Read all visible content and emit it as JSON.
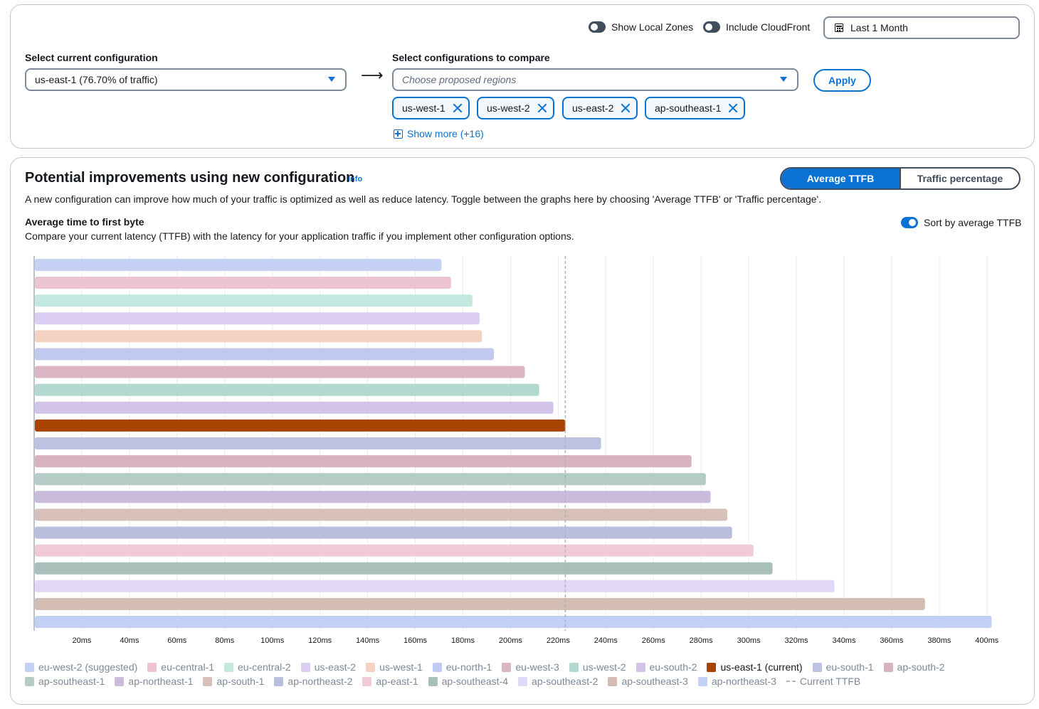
{
  "top": {
    "show_local_zones": "Show Local Zones",
    "include_cloudfront": "Include CloudFront",
    "date_range": "Last 1 Month",
    "current_label": "Select current configuration",
    "current_value": "us-east-1 (76.70% of traffic)",
    "compare_label": "Select configurations to compare",
    "compare_placeholder": "Choose proposed regions",
    "apply": "Apply",
    "tokens": [
      "us-west-1",
      "us-west-2",
      "us-east-2",
      "ap-southeast-1"
    ],
    "show_more": "Show more (+16)"
  },
  "section": {
    "title": "Potential improvements using new configuration",
    "info": "Info",
    "seg_active": "Average TTFB",
    "seg_inactive": "Traffic percentage",
    "description": "A new configuration can improve how much of your traffic is optimized as well as reduce latency. Toggle between the graphs here by choosing 'Average TTFB' or 'Traffic percentage'.",
    "chart_title": "Average time to first byte",
    "chart_description": "Compare your current latency (TTFB) with the latency for your application traffic if you implement other configuration options.",
    "sort_label": "Sort by average TTFB"
  },
  "colors": {
    "accent": "#0972d3",
    "current_bar": "#a84300",
    "current_line": "#aab7b8"
  },
  "chart_data": {
    "type": "bar",
    "orientation": "horizontal",
    "xlabel": "",
    "xlim": [
      0,
      405
    ],
    "x_ticks": [
      "20ms",
      "40ms",
      "60ms",
      "80ms",
      "100ms",
      "120ms",
      "140ms",
      "160ms",
      "180ms",
      "200ms",
      "220ms",
      "240ms",
      "260ms",
      "280ms",
      "300ms",
      "320ms",
      "340ms",
      "360ms",
      "380ms",
      "400ms"
    ],
    "current_ttfb": 223,
    "current_ttfb_label": "Current TTFB",
    "grid": true,
    "legend_position": "bottom",
    "series": [
      {
        "name": "eu-west-2 (suggested)",
        "value": 171,
        "color": "#c5d0f5"
      },
      {
        "name": "eu-central-1",
        "value": 175,
        "color": "#ebc3d1"
      },
      {
        "name": "eu-central-2",
        "value": 184,
        "color": "#c3e8e0"
      },
      {
        "name": "us-east-2",
        "value": 187,
        "color": "#dccdf3"
      },
      {
        "name": "us-west-1",
        "value": 188,
        "color": "#f5d3c2"
      },
      {
        "name": "eu-north-1",
        "value": 193,
        "color": "#c0c9ef"
      },
      {
        "name": "eu-west-3",
        "value": 206,
        "color": "#dcb5c4"
      },
      {
        "name": "us-west-2",
        "value": 212,
        "color": "#b3d8cf"
      },
      {
        "name": "eu-south-2",
        "value": 218,
        "color": "#d2c4e8"
      },
      {
        "name": "us-east-1 (current)",
        "value": 223,
        "color": "#a84300",
        "current": true
      },
      {
        "name": "eu-south-1",
        "value": 238,
        "color": "#bcc2e0"
      },
      {
        "name": "ap-south-2",
        "value": 276,
        "color": "#d8b2be"
      },
      {
        "name": "ap-southeast-1",
        "value": 282,
        "color": "#b4cbc6"
      },
      {
        "name": "ap-northeast-1",
        "value": 284,
        "color": "#cabbdd"
      },
      {
        "name": "ap-south-1",
        "value": 291,
        "color": "#d7c0b7"
      },
      {
        "name": "ap-northeast-2",
        "value": 293,
        "color": "#b8bedc"
      },
      {
        "name": "ap-east-1",
        "value": 302,
        "color": "#f0cad6"
      },
      {
        "name": "ap-southeast-4",
        "value": 310,
        "color": "#a9c0ba"
      },
      {
        "name": "ap-southeast-2",
        "value": 336,
        "color": "#e1d7f6"
      },
      {
        "name": "ap-southeast-3",
        "value": 374,
        "color": "#d3bcb2"
      },
      {
        "name": "ap-northeast-3",
        "value": 402,
        "color": "#c2d0f6"
      }
    ]
  }
}
